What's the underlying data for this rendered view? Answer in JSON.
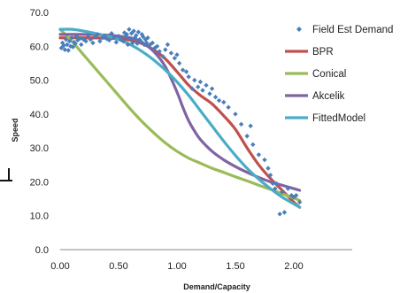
{
  "chart_data": {
    "type": "scatter",
    "xlabel": "Demand/Capacity",
    "ylabel": "Speed",
    "xlim": [
      0,
      2.5
    ],
    "ylim": [
      0,
      70
    ],
    "x_ticks": [
      "0.00",
      "0.50",
      "1.00",
      "1.50",
      "2.00"
    ],
    "y_ticks": [
      "0.0",
      "10.0",
      "20.0",
      "30.0",
      "40.0",
      "50.0",
      "60.0",
      "70.0"
    ],
    "grid": false,
    "legend_position": "right",
    "series": [
      {
        "name": "Field Est Demand",
        "kind": "scatter",
        "color": "#4a7ebb",
        "x": [
          0.01,
          0.02,
          0.03,
          0.04,
          0.05,
          0.06,
          0.07,
          0.08,
          0.09,
          0.1,
          0.11,
          0.12,
          0.13,
          0.14,
          0.15,
          0.17,
          0.18,
          0.2,
          0.22,
          0.24,
          0.26,
          0.28,
          0.3,
          0.32,
          0.34,
          0.36,
          0.38,
          0.4,
          0.42,
          0.44,
          0.46,
          0.48,
          0.5,
          0.52,
          0.54,
          0.55,
          0.56,
          0.57,
          0.58,
          0.59,
          0.6,
          0.61,
          0.62,
          0.63,
          0.64,
          0.65,
          0.66,
          0.67,
          0.68,
          0.69,
          0.7,
          0.71,
          0.72,
          0.73,
          0.74,
          0.75,
          0.77,
          0.79,
          0.81,
          0.83,
          0.85,
          0.88,
          0.9,
          0.92,
          0.95,
          0.98,
          1.0,
          1.02,
          1.05,
          1.08,
          1.1,
          1.13,
          1.15,
          1.18,
          1.2,
          1.22,
          1.25,
          1.28,
          1.3,
          1.33,
          1.36,
          1.4,
          1.44,
          1.5,
          1.55,
          1.6,
          1.63,
          1.65,
          1.7,
          1.75,
          1.78,
          1.8,
          1.82,
          1.84,
          1.85,
          1.88,
          1.9,
          1.92,
          1.95,
          1.98,
          2.0,
          2.02,
          2.05
        ],
        "y": [
          59.5,
          61.0,
          60.2,
          59.0,
          62.0,
          60.5,
          58.8,
          61.5,
          60.0,
          62.5,
          59.8,
          61.2,
          60.8,
          63.0,
          61.8,
          62.3,
          60.5,
          62.0,
          61.5,
          63.2,
          62.0,
          61.0,
          62.8,
          63.5,
          61.5,
          62.5,
          63.0,
          62.2,
          61.8,
          63.8,
          62.5,
          61.2,
          63.0,
          62.0,
          61.5,
          64.0,
          62.8,
          63.5,
          60.5,
          65.0,
          62.2,
          63.8,
          61.0,
          64.5,
          62.5,
          63.2,
          60.8,
          64.2,
          62.0,
          61.5,
          63.5,
          62.8,
          60.5,
          62.0,
          61.0,
          62.5,
          60.5,
          61.0,
          59.5,
          60.0,
          58.5,
          57.0,
          59.0,
          60.5,
          58.0,
          56.5,
          57.5,
          55.0,
          53.0,
          52.5,
          51.0,
          47.5,
          50.0,
          48.0,
          49.5,
          47.0,
          48.5,
          46.0,
          47.5,
          45.0,
          44.0,
          43.5,
          42.0,
          40.0,
          37.0,
          33.5,
          36.5,
          31.0,
          28.0,
          26.5,
          24.0,
          22.0,
          19.5,
          18.0,
          19.5,
          10.5,
          17.0,
          11.0,
          18.0,
          16.0,
          15.5,
          16.0,
          14.0
        ]
      },
      {
        "name": "BPR",
        "kind": "line",
        "color": "#c0504d",
        "x": [
          0.0,
          0.2,
          0.4,
          0.6,
          0.7,
          0.8,
          0.9,
          1.0,
          1.1,
          1.2,
          1.3,
          1.4,
          1.5,
          1.6,
          1.7,
          1.8,
          1.9,
          2.0,
          2.05
        ],
        "y": [
          62.5,
          62.5,
          62.4,
          61.8,
          60.8,
          59.0,
          56.3,
          52.5,
          48.5,
          45.5,
          43.0,
          39.5,
          35.5,
          30.0,
          25.0,
          21.0,
          17.5,
          14.0,
          12.5
        ]
      },
      {
        "name": "Conical",
        "kind": "line",
        "color": "#9bbb59",
        "x": [
          0.0,
          0.1,
          0.2,
          0.3,
          0.4,
          0.5,
          0.6,
          0.7,
          0.8,
          0.9,
          1.0,
          1.1,
          1.2,
          1.3,
          1.4,
          1.5,
          1.6,
          1.7,
          1.8,
          1.9,
          2.0,
          2.05
        ],
        "y": [
          65.0,
          61.5,
          57.5,
          53.5,
          49.5,
          45.5,
          41.5,
          37.8,
          34.5,
          31.5,
          29.0,
          27.0,
          25.5,
          24.0,
          22.8,
          21.5,
          20.3,
          19.0,
          17.8,
          16.5,
          15.2,
          14.5
        ]
      },
      {
        "name": "Akcelik",
        "kind": "line",
        "color": "#8064a2",
        "x": [
          0.0,
          0.2,
          0.4,
          0.6,
          0.7,
          0.8,
          0.9,
          1.0,
          1.05,
          1.1,
          1.15,
          1.2,
          1.3,
          1.4,
          1.5,
          1.6,
          1.7,
          1.8,
          1.9,
          2.0,
          2.05
        ],
        "y": [
          63.5,
          63.5,
          63.3,
          62.5,
          61.2,
          58.5,
          54.0,
          46.5,
          42.0,
          38.0,
          35.0,
          32.5,
          29.0,
          26.5,
          24.5,
          22.8,
          21.3,
          20.0,
          19.0,
          18.0,
          17.5
        ]
      },
      {
        "name": "FittedModel",
        "kind": "line",
        "color": "#4bacc6",
        "x": [
          0.0,
          0.1,
          0.2,
          0.3,
          0.4,
          0.5,
          0.6,
          0.7,
          0.8,
          0.9,
          1.0,
          1.1,
          1.2,
          1.3,
          1.4,
          1.5,
          1.6,
          1.7,
          1.8,
          1.9,
          2.0,
          2.05
        ],
        "y": [
          65.0,
          65.0,
          64.5,
          63.8,
          63.0,
          62.0,
          60.5,
          58.5,
          56.0,
          53.0,
          49.5,
          45.5,
          41.0,
          36.5,
          32.0,
          27.8,
          24.0,
          20.8,
          18.0,
          15.5,
          13.5,
          12.5
        ]
      }
    ]
  }
}
